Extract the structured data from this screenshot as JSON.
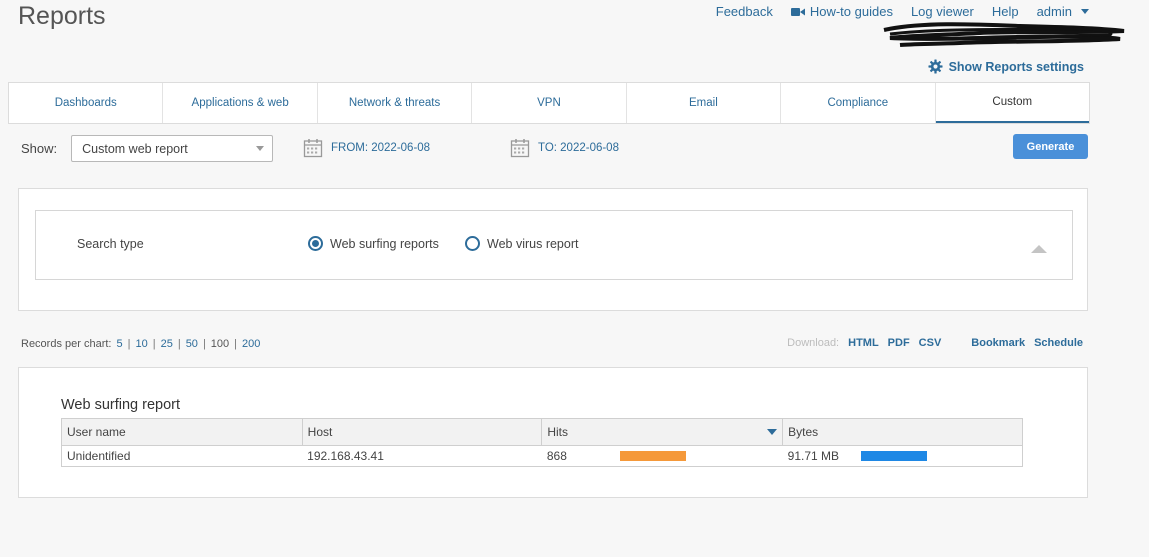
{
  "header": {
    "title": "Reports",
    "nav": {
      "feedback": "Feedback",
      "how_to": "How-to guides",
      "log_viewer": "Log viewer",
      "help": "Help",
      "user": "admin"
    },
    "settings_link": "Show Reports settings"
  },
  "tabs": [
    {
      "label": "Dashboards"
    },
    {
      "label": "Applications & web"
    },
    {
      "label": "Network & threats"
    },
    {
      "label": "VPN"
    },
    {
      "label": "Email"
    },
    {
      "label": "Compliance"
    },
    {
      "label": "Custom"
    }
  ],
  "filters": {
    "show_label": "Show:",
    "show_value": "Custom web report",
    "from_label": "FROM: 2022-06-08",
    "to_label": "TO: 2022-06-08",
    "generate": "Generate"
  },
  "search": {
    "label": "Search type",
    "option1": "Web surfing reports",
    "option2": "Web virus report"
  },
  "records": {
    "label": "Records per chart:",
    "options": [
      "5",
      "10",
      "25",
      "50",
      "100",
      "200"
    ]
  },
  "downloads": {
    "label": "Download:",
    "html": "HTML",
    "pdf": "PDF",
    "csv": "CSV",
    "bookmark": "Bookmark",
    "schedule": "Schedule"
  },
  "report": {
    "title": "Web surfing report",
    "columns": [
      "User name",
      "Host",
      "Hits",
      "Bytes"
    ],
    "rows": [
      {
        "user": "Unidentified",
        "host": "192.168.43.41",
        "hits": "868",
        "bytes": "91.71 MB",
        "hits_fraction": 1.0,
        "bytes_fraction": 1.0
      }
    ]
  },
  "colors": {
    "accent": "#2d6c9a",
    "generate_button": "#4a90d9",
    "hits_bar": "#f5993a",
    "bytes_bar": "#1e88e5"
  }
}
